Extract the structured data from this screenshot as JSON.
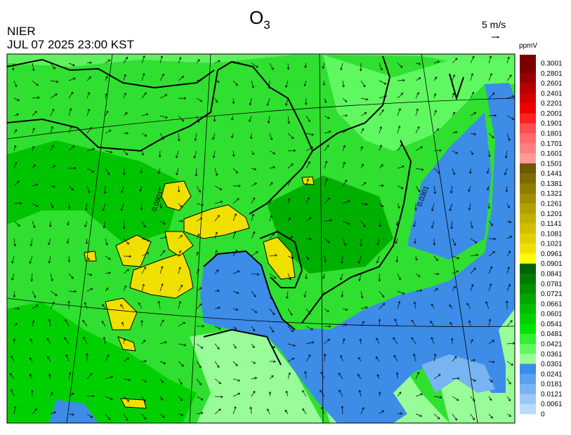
{
  "header": {
    "title": {
      "base": "O",
      "subscript": "3"
    },
    "source": "NIER",
    "datetime": "JUL 07 2025 23:00 KST",
    "vector_scale": "5 m/s"
  },
  "colorbar": {
    "unit": "ppmV",
    "labels": [
      "0.3001",
      "0.2801",
      "0.2601",
      "0.2401",
      "0.2201",
      "0.2001",
      "0.1901",
      "0.1801",
      "0.1701",
      "0.1601",
      "0.1501",
      "0.1441",
      "0.1381",
      "0.1321",
      "0.1261",
      "0.1201",
      "0.1141",
      "0.1081",
      "0.1021",
      "0.0961",
      "0.0901",
      "0.0841",
      "0.0781",
      "0.0721",
      "0.0661",
      "0.0601",
      "0.0541",
      "0.0481",
      "0.0421",
      "0.0361",
      "0.0301",
      "0.0241",
      "0.0181",
      "0.0121",
      "0.0061",
      "0"
    ],
    "colors": [
      "#7a0000",
      "#9a0000",
      "#b80000",
      "#d40000",
      "#ee0000",
      "#ff2020",
      "#ff4c4c",
      "#ff6a6a",
      "#ff8080",
      "#ff9a9a",
      "#6b5a00",
      "#7d6b00",
      "#8f7d00",
      "#a08e00",
      "#b2a000",
      "#c2b000",
      "#d2c000",
      "#e0d000",
      "#f0e000",
      "#ffff00",
      "#006400",
      "#007a00",
      "#009000",
      "#00a600",
      "#00bc00",
      "#00d000",
      "#00e400",
      "#30f030",
      "#60f860",
      "#98fc98",
      "#3c8ce8",
      "#5aa0ee",
      "#78b4f2",
      "#98c8f6",
      "#b8dcfa"
    ]
  },
  "contour_labels": [
    "0.0901",
    "0.0301"
  ]
}
